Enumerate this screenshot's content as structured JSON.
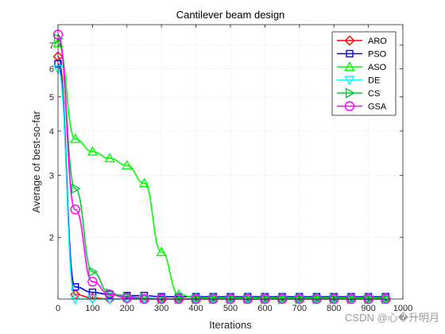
{
  "chart_data": {
    "type": "line",
    "title": "Cantilever beam design",
    "xlabel": "Iterations",
    "ylabel": "Average of best-so-far",
    "xlim": [
      0,
      1000
    ],
    "ylim": [
      1.34,
      8
    ],
    "yscale": "log",
    "grid": true,
    "legend_position": "top-right",
    "x_ticks": [
      0,
      100,
      200,
      300,
      400,
      500,
      600,
      700,
      800,
      900,
      1000
    ],
    "y_ticks": [
      2,
      3,
      4,
      5,
      6,
      7
    ],
    "series": [
      {
        "name": "ARO",
        "color": "#ff0000",
        "marker": "diamond",
        "x": [
          0,
          50,
          100,
          150,
          200,
          250,
          300,
          350,
          400,
          450,
          500,
          550,
          600,
          650,
          700,
          750,
          800,
          850,
          900,
          950
        ],
        "y": [
          6.5,
          1.38,
          1.35,
          1.34,
          1.34,
          1.34,
          1.34,
          1.34,
          1.34,
          1.34,
          1.34,
          1.34,
          1.34,
          1.34,
          1.34,
          1.34,
          1.34,
          1.34,
          1.34,
          1.34
        ]
      },
      {
        "name": "PSO",
        "color": "#0000ff",
        "marker": "square",
        "x": [
          0,
          50,
          100,
          150,
          200,
          250,
          300,
          350,
          400,
          450,
          500,
          550,
          600,
          650,
          700,
          750,
          800,
          850,
          900,
          950
        ],
        "y": [
          6.2,
          1.45,
          1.4,
          1.38,
          1.37,
          1.37,
          1.36,
          1.36,
          1.36,
          1.36,
          1.36,
          1.36,
          1.36,
          1.36,
          1.36,
          1.36,
          1.36,
          1.36,
          1.36,
          1.36
        ]
      },
      {
        "name": "ASO",
        "color": "#00ff00",
        "marker": "triangle-up",
        "x": [
          0,
          50,
          100,
          150,
          200,
          250,
          300,
          350,
          400,
          450,
          500,
          550,
          600,
          650,
          700,
          750,
          800,
          850,
          900,
          950
        ],
        "y": [
          7.1,
          3.8,
          3.5,
          3.35,
          3.2,
          2.85,
          1.82,
          1.38,
          1.35,
          1.35,
          1.35,
          1.35,
          1.35,
          1.35,
          1.35,
          1.35,
          1.35,
          1.35,
          1.35,
          1.35
        ]
      },
      {
        "name": "DE",
        "color": "#00ffff",
        "marker": "triangle-down",
        "x": [
          0,
          50,
          100,
          150,
          200,
          250,
          300,
          350,
          400,
          450,
          500,
          550,
          600,
          650,
          700,
          750,
          800,
          850,
          900,
          950
        ],
        "y": [
          6.0,
          1.33,
          1.33,
          1.33,
          1.33,
          1.33,
          1.33,
          1.33,
          1.33,
          1.33,
          1.33,
          1.33,
          1.33,
          1.33,
          1.33,
          1.33,
          1.33,
          1.33,
          1.33,
          1.33
        ]
      },
      {
        "name": "CS",
        "color": "#00cc33",
        "marker": "triangle-right",
        "x": [
          0,
          50,
          100,
          150,
          200,
          250,
          300,
          350,
          400,
          450,
          500,
          550,
          600,
          650,
          700,
          750,
          800,
          850,
          900,
          950
        ],
        "y": [
          7.3,
          2.75,
          1.6,
          1.39,
          1.36,
          1.35,
          1.34,
          1.34,
          1.34,
          1.34,
          1.34,
          1.34,
          1.34,
          1.34,
          1.34,
          1.34,
          1.34,
          1.34,
          1.34,
          1.34
        ]
      },
      {
        "name": "GSA",
        "color": "#ff00ff",
        "marker": "circle",
        "x": [
          0,
          50,
          100,
          150,
          200,
          250,
          300,
          350,
          400,
          450,
          500,
          550,
          600,
          650,
          700,
          750,
          800,
          850,
          900,
          950
        ],
        "y": [
          7.5,
          2.4,
          1.5,
          1.38,
          1.35,
          1.34,
          1.34,
          1.34,
          1.34,
          1.34,
          1.34,
          1.34,
          1.34,
          1.34,
          1.34,
          1.34,
          1.34,
          1.34,
          1.34,
          1.34
        ]
      }
    ]
  },
  "watermark": "CSDN @心�升明月"
}
